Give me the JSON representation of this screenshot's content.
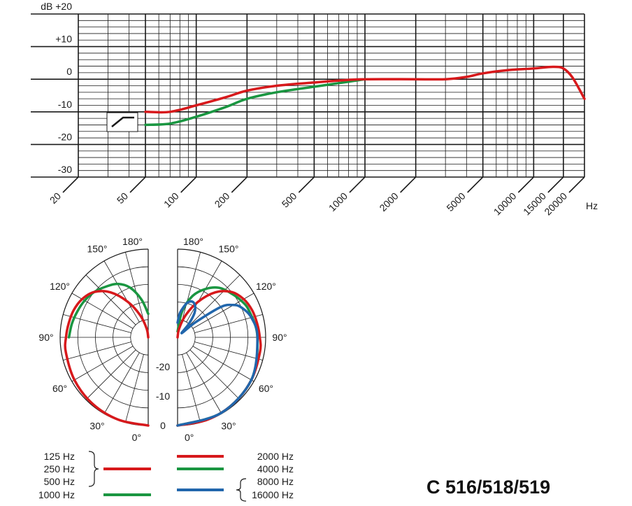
{
  "chart_data": [
    {
      "type": "line",
      "title": "",
      "xlabel": "Hz",
      "ylabel": "dB",
      "x_scale": "log",
      "xlim": [
        20,
        20000
      ],
      "ylim": [
        -30,
        20
      ],
      "grid": true,
      "x_ticks": [
        {
          "value": 20,
          "label": "20"
        },
        {
          "value": 50,
          "label": "50"
        },
        {
          "value": 100,
          "label": "100"
        },
        {
          "value": 200,
          "label": "200"
        },
        {
          "value": 500,
          "label": "500"
        },
        {
          "value": 1000,
          "label": "1000"
        },
        {
          "value": 2000,
          "label": "2000"
        },
        {
          "value": 5000,
          "label": "5000"
        },
        {
          "value": 10000,
          "label": "10000"
        },
        {
          "value": 15000,
          "label": "15000"
        },
        {
          "value": 20000,
          "label": "20000"
        }
      ],
      "y_ticks": [
        {
          "value": 20,
          "label": "dB  +20"
        },
        {
          "value": 10,
          "label": "+10"
        },
        {
          "value": 0,
          "label": "0"
        },
        {
          "value": -10,
          "label": "-10"
        },
        {
          "value": -20,
          "label": "-20"
        },
        {
          "value": -30,
          "label": "-30"
        }
      ],
      "series": [
        {
          "color": "#d7191c",
          "x": [
            50,
            70,
            100,
            150,
            200,
            300,
            500,
            700,
            1000,
            2000,
            3000,
            4000,
            5000,
            7000,
            10000,
            13000,
            15000,
            17000,
            20000
          ],
          "y": [
            -10,
            -10,
            -8,
            -5.5,
            -3.5,
            -2,
            -1,
            -0.4,
            0,
            0,
            0,
            0.7,
            1.8,
            2.8,
            3.3,
            3.8,
            3.3,
            0.5,
            -6
          ]
        },
        {
          "color": "#1a9641",
          "x": [
            50,
            70,
            100,
            150,
            200,
            300,
            500,
            700,
            1000
          ],
          "y": [
            -14,
            -13.6,
            -11.5,
            -8.5,
            -6,
            -4,
            -2.3,
            -1.2,
            0
          ]
        }
      ],
      "inset_icon": "low-cut-filter-icon"
    },
    {
      "type": "polar",
      "angle_labels": {
        "left": [
          "180°",
          "150°",
          "120°",
          "90°",
          "60°",
          "30°",
          "0°"
        ],
        "right": [
          "180°",
          "150°",
          "120°",
          "90°",
          "60°",
          "30°",
          "0°"
        ]
      },
      "radial_labels": [
        "-20",
        "-10",
        "0"
      ],
      "rlim_db": [
        -30,
        0
      ],
      "series": [
        {
          "side": "left",
          "color": "#d7191c",
          "angles": [
            0,
            20,
            40,
            60,
            80,
            90,
            100,
            110,
            120,
            130,
            140,
            150,
            160,
            170,
            180
          ],
          "db": [
            0,
            -0.2,
            -0.5,
            -1,
            -1.5,
            -2,
            -2.5,
            -3,
            -4,
            -6,
            -10,
            -16,
            -22,
            -27,
            -30
          ]
        },
        {
          "side": "left",
          "color": "#1a9641",
          "angles": [
            90,
            100,
            110,
            120,
            130,
            140,
            150,
            160,
            170,
            180
          ],
          "db": [
            -3,
            -3.6,
            -4.3,
            -5,
            -6,
            -7.5,
            -9,
            -12,
            -17,
            -22
          ]
        },
        {
          "side": "right",
          "color": "#d7191c",
          "angles": [
            0,
            20,
            40,
            60,
            80,
            90,
            100,
            110,
            120,
            130,
            140,
            150,
            160,
            170,
            180
          ],
          "db": [
            0,
            -0.2,
            -0.5,
            -1,
            -1.5,
            -2,
            -2.5,
            -3,
            -4,
            -6,
            -10,
            -16,
            -22,
            -27,
            -30
          ]
        },
        {
          "side": "right",
          "color": "#1a9641",
          "angles": [
            0,
            30,
            60,
            90,
            110,
            120,
            130,
            140,
            150,
            160,
            170,
            180
          ],
          "db": [
            0,
            -0.3,
            -1,
            -2.8,
            -4,
            -5,
            -6.5,
            -8,
            -11,
            -15,
            -21,
            -28
          ]
        },
        {
          "side": "right",
          "color": "#2166ac",
          "angles": [
            0,
            30,
            60,
            90,
            105,
            115,
            120,
            125,
            130,
            135,
            140,
            145,
            150,
            155,
            160,
            165,
            170,
            175,
            180
          ],
          "db": [
            0,
            -0.3,
            -1,
            -2.8,
            -4,
            -6,
            -8,
            -12,
            -22,
            -28,
            -24,
            -20,
            -18,
            -17,
            -17,
            -18,
            -20,
            -22,
            -25
          ]
        }
      ]
    }
  ],
  "legend": {
    "left_labels": [
      "125 Hz",
      "250 Hz",
      "500 Hz",
      "1000 Hz"
    ],
    "right_labels": [
      "2000 Hz",
      "4000 Hz",
      "8000 Hz",
      "16000 Hz"
    ]
  },
  "model_label": "C 516/518/519"
}
